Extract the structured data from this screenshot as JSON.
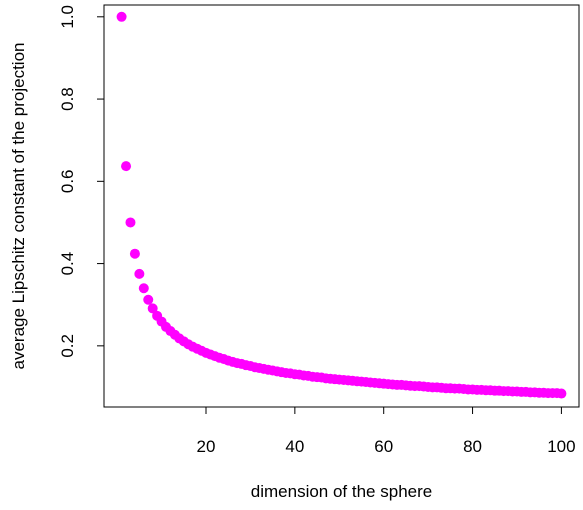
{
  "chart_data": {
    "type": "scatter",
    "title": "",
    "xlabel": "dimension of the sphere",
    "ylabel": "average Lipschitz constant of the projection",
    "xlim": [
      -2.96,
      103.96
    ],
    "ylim": [
      0.0513,
      1.0287
    ],
    "x_ticks": [
      20,
      40,
      60,
      80,
      100
    ],
    "x_tick_labels": [
      "20",
      "40",
      "60",
      "80",
      "100"
    ],
    "y_ticks": [
      0.2,
      0.4,
      0.6,
      0.8,
      1.0
    ],
    "y_tick_labels": [
      "0.2",
      "0.4",
      "0.6",
      "0.8",
      "1.0"
    ],
    "grid": false,
    "marker_color": "#ff00ff",
    "series": [
      {
        "x": [
          1,
          2,
          3,
          4,
          5,
          6,
          7,
          8,
          9,
          10,
          11,
          12,
          13,
          14,
          15,
          16,
          17,
          18,
          19,
          20,
          21,
          22,
          23,
          24,
          25,
          26,
          27,
          28,
          29,
          30,
          31,
          32,
          33,
          34,
          35,
          36,
          37,
          38,
          39,
          40,
          41,
          42,
          43,
          44,
          45,
          46,
          47,
          48,
          49,
          50,
          51,
          52,
          53,
          54,
          55,
          56,
          57,
          58,
          59,
          60,
          61,
          62,
          63,
          64,
          65,
          66,
          67,
          68,
          69,
          70,
          71,
          72,
          73,
          74,
          75,
          76,
          77,
          78,
          79,
          80,
          81,
          82,
          83,
          84,
          85,
          86,
          87,
          88,
          89,
          90,
          91,
          92,
          93,
          94,
          95,
          96,
          97,
          98,
          99,
          100
        ],
        "y": [
          1.0,
          0.637,
          0.5,
          0.424,
          0.375,
          0.34,
          0.312,
          0.291,
          0.273,
          0.259,
          0.246,
          0.236,
          0.227,
          0.218,
          0.211,
          0.204,
          0.198,
          0.193,
          0.188,
          0.183,
          0.179,
          0.175,
          0.171,
          0.168,
          0.164,
          0.161,
          0.158,
          0.156,
          0.153,
          0.151,
          0.148,
          0.146,
          0.144,
          0.142,
          0.14,
          0.138,
          0.136,
          0.134,
          0.133,
          0.131,
          0.13,
          0.128,
          0.127,
          0.125,
          0.124,
          0.123,
          0.121,
          0.12,
          0.119,
          0.118,
          0.117,
          0.116,
          0.115,
          0.114,
          0.113,
          0.112,
          0.111,
          0.11,
          0.109,
          0.108,
          0.107,
          0.106,
          0.105,
          0.105,
          0.104,
          0.103,
          0.102,
          0.102,
          0.101,
          0.1,
          0.099,
          0.099,
          0.098,
          0.097,
          0.097,
          0.096,
          0.096,
          0.095,
          0.094,
          0.094,
          0.093,
          0.093,
          0.092,
          0.092,
          0.091,
          0.091,
          0.09,
          0.09,
          0.089,
          0.089,
          0.088,
          0.088,
          0.087,
          0.087,
          0.086,
          0.086,
          0.085,
          0.085,
          0.085,
          0.084
        ]
      }
    ]
  }
}
